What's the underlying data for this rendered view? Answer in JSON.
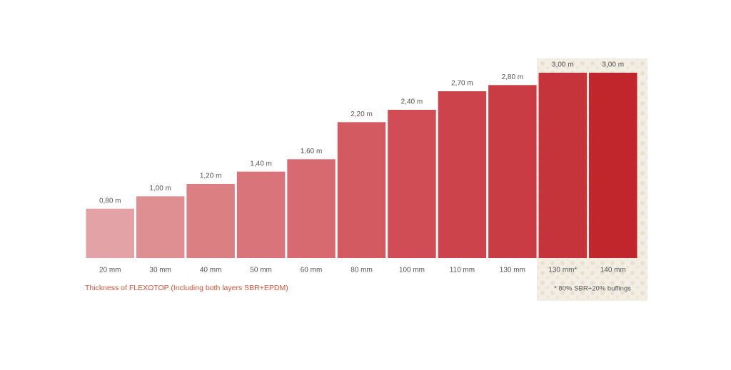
{
  "chart_data": {
    "type": "bar",
    "categories": [
      "20 mm",
      "30 mm",
      "40 mm",
      "50 mm",
      "60 mm",
      "80 mm",
      "100 mm",
      "110 mm",
      "130 mm",
      "130 mm*",
      "140 mm"
    ],
    "values": [
      0.8,
      1.0,
      1.2,
      1.4,
      1.6,
      2.2,
      2.4,
      2.7,
      2.8,
      3.0,
      3.0
    ],
    "value_labels": [
      "0,80 m",
      "1,00 m",
      "1,20 m",
      "1,40 m",
      "1,60 m",
      "2,20 m",
      "2,40 m",
      "2,70 m",
      "2,80 m",
      "3,00 m",
      "3,00 m"
    ],
    "colors": [
      "#e3a3a6",
      "#df8e92",
      "#db7f83",
      "#d9747a",
      "#d76a70",
      "#d35a61",
      "#d14d55",
      "#cd434b",
      "#c93c44",
      "#c5333b",
      "#c1262d"
    ],
    "annotation": "Thickness of FLEXOTOP (Including both layers SBR+EPDM)",
    "footnote": "* 80% SBR+20% buffings"
  }
}
